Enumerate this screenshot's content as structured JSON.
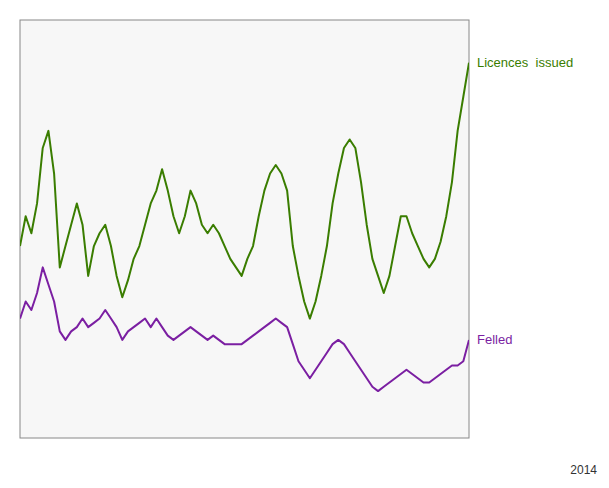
{
  "chart_data": {
    "type": "line",
    "categories": [
      null,
      null,
      null,
      null,
      null,
      null,
      null,
      null,
      null,
      null,
      null,
      null,
      null,
      null,
      null,
      null,
      null,
      null,
      null,
      null,
      null,
      null,
      null,
      null,
      null,
      null,
      null,
      null,
      null,
      null,
      null,
      null,
      null,
      null,
      null,
      null,
      null,
      null,
      null,
      null,
      null,
      null,
      null,
      null,
      null,
      null,
      null,
      null,
      null,
      null,
      null,
      null,
      null,
      null,
      null,
      null,
      null,
      null,
      null,
      null,
      null,
      null,
      null,
      null,
      null,
      null,
      null,
      null,
      null,
      null,
      null,
      null,
      null,
      null,
      null,
      null,
      null,
      null,
      null,
      null
    ],
    "series": [
      {
        "name": "Licences  issued",
        "color": "#3a7d00",
        "values": [
          55,
          62,
          58,
          65,
          78,
          82,
          72,
          50,
          55,
          60,
          65,
          60,
          48,
          55,
          58,
          60,
          55,
          48,
          43,
          47,
          52,
          55,
          60,
          65,
          68,
          73,
          68,
          62,
          58,
          62,
          68,
          65,
          60,
          58,
          60,
          58,
          55,
          52,
          50,
          48,
          52,
          55,
          62,
          68,
          72,
          74,
          72,
          68,
          55,
          48,
          42,
          38,
          42,
          48,
          55,
          65,
          72,
          78,
          80,
          78,
          70,
          60,
          52,
          48,
          44,
          48,
          55,
          62,
          62,
          58,
          55,
          52,
          50,
          52,
          56,
          62,
          70,
          82,
          90,
          98
        ]
      },
      {
        "name": "Felled",
        "color": "#7b1fa2",
        "values": [
          38,
          42,
          40,
          44,
          50,
          46,
          42,
          35,
          33,
          35,
          36,
          38,
          36,
          37,
          38,
          40,
          38,
          36,
          33,
          35,
          36,
          37,
          38,
          36,
          38,
          36,
          34,
          33,
          34,
          35,
          36,
          35,
          34,
          33,
          34,
          33,
          32,
          32,
          32,
          32,
          33,
          34,
          35,
          36,
          37,
          38,
          37,
          36,
          32,
          28,
          26,
          24,
          26,
          28,
          30,
          32,
          33,
          32,
          30,
          28,
          26,
          24,
          22,
          21,
          22,
          23,
          24,
          25,
          26,
          25,
          24,
          23,
          23,
          24,
          25,
          26,
          27,
          27,
          28,
          33
        ]
      }
    ],
    "ylim": [
      10,
      108
    ],
    "grid": false,
    "tick_labels": false,
    "annotations": [
      "2014"
    ]
  }
}
